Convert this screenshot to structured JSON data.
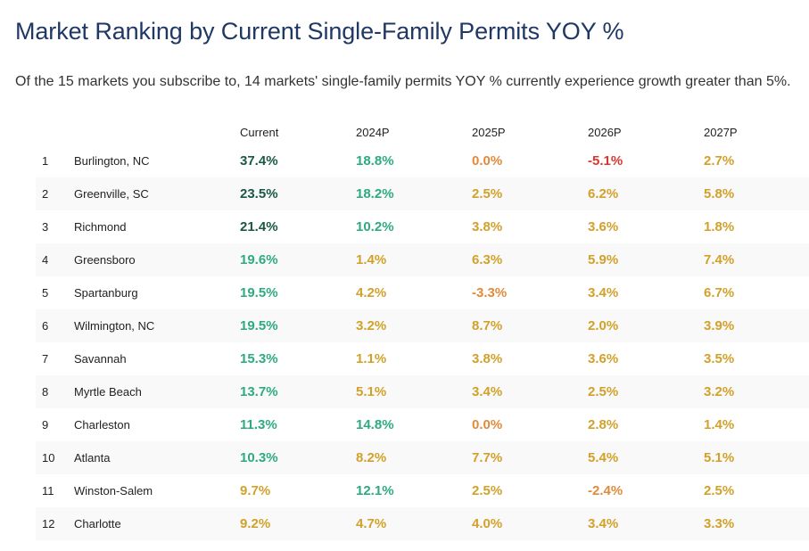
{
  "title": "Market Ranking by Current Single-Family Permits YOY %",
  "subtitle": "Of the 15 markets you subscribe to, 14 markets' single-family permits YOY % currently experience growth greater than 5%.",
  "colors": {
    "strong_green": "#1a5746",
    "green": "#2eaa80",
    "gold": "#d1a12a",
    "orange": "#e28a3a",
    "red": "#d9352e"
  },
  "table": {
    "headers": [
      "",
      "",
      "Current",
      "2024P",
      "2025P",
      "2026P",
      "2027P"
    ],
    "rows": [
      {
        "rank": "1",
        "market": "Burlington, NC",
        "current": "37.4%",
        "y2024": "18.8%",
        "y2025": "0.0%",
        "y2026": "-5.1%",
        "y2027": "2.7%"
      },
      {
        "rank": "2",
        "market": "Greenville, SC",
        "current": "23.5%",
        "y2024": "18.2%",
        "y2025": "2.5%",
        "y2026": "6.2%",
        "y2027": "5.8%"
      },
      {
        "rank": "3",
        "market": "Richmond",
        "current": "21.4%",
        "y2024": "10.2%",
        "y2025": "3.8%",
        "y2026": "3.6%",
        "y2027": "1.8%"
      },
      {
        "rank": "4",
        "market": "Greensboro",
        "current": "19.6%",
        "y2024": "1.4%",
        "y2025": "6.3%",
        "y2026": "5.9%",
        "y2027": "7.4%"
      },
      {
        "rank": "5",
        "market": "Spartanburg",
        "current": "19.5%",
        "y2024": "4.2%",
        "y2025": "-3.3%",
        "y2026": "3.4%",
        "y2027": "6.7%"
      },
      {
        "rank": "6",
        "market": "Wilmington, NC",
        "current": "19.5%",
        "y2024": "3.2%",
        "y2025": "8.7%",
        "y2026": "2.0%",
        "y2027": "3.9%"
      },
      {
        "rank": "7",
        "market": "Savannah",
        "current": "15.3%",
        "y2024": "1.1%",
        "y2025": "3.8%",
        "y2026": "3.6%",
        "y2027": "3.5%"
      },
      {
        "rank": "8",
        "market": "Myrtle Beach",
        "current": "13.7%",
        "y2024": "5.1%",
        "y2025": "3.4%",
        "y2026": "2.5%",
        "y2027": "3.2%"
      },
      {
        "rank": "9",
        "market": "Charleston",
        "current": "11.3%",
        "y2024": "14.8%",
        "y2025": "0.0%",
        "y2026": "2.8%",
        "y2027": "1.4%"
      },
      {
        "rank": "10",
        "market": "Atlanta",
        "current": "10.3%",
        "y2024": "8.2%",
        "y2025": "7.7%",
        "y2026": "5.4%",
        "y2027": "5.1%"
      },
      {
        "rank": "11",
        "market": "Winston-Salem",
        "current": "9.7%",
        "y2024": "12.1%",
        "y2025": "2.5%",
        "y2026": "-2.4%",
        "y2027": "2.5%"
      },
      {
        "rank": "12",
        "market": "Charlotte",
        "current": "9.2%",
        "y2024": "4.7%",
        "y2025": "4.0%",
        "y2026": "3.4%",
        "y2027": "3.3%"
      }
    ]
  }
}
